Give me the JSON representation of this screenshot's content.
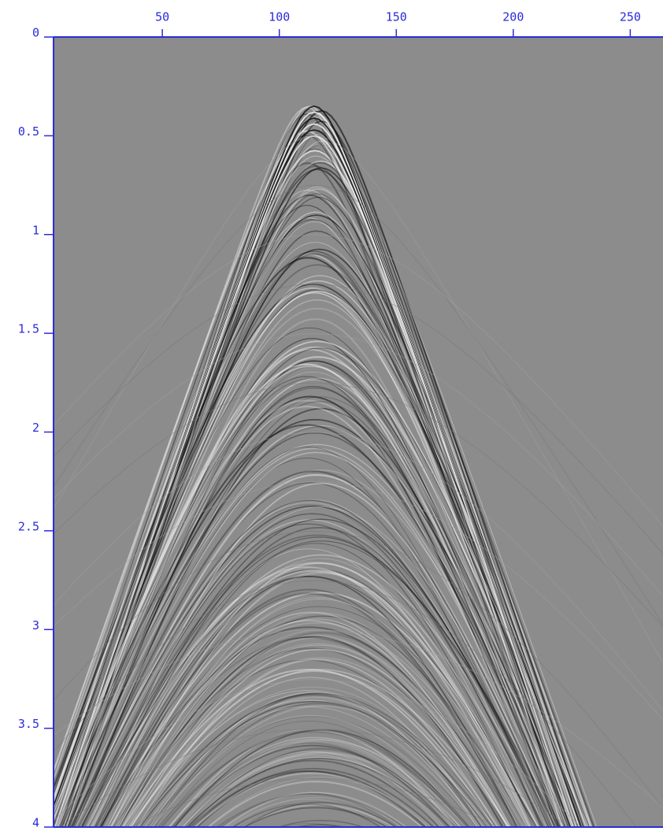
{
  "chart_data": {
    "type": "seismic",
    "x_axis_position": "top",
    "axis_color": "#2b2bd9",
    "background": "#8c8c8c",
    "xlim": [
      3.5,
      264
    ],
    "ylim": [
      0,
      4
    ],
    "xticks": [
      50,
      100,
      150,
      200,
      250
    ],
    "yticks": [
      0,
      0.5,
      1,
      1.5,
      2,
      2.5,
      3,
      3.5,
      4
    ]
  }
}
